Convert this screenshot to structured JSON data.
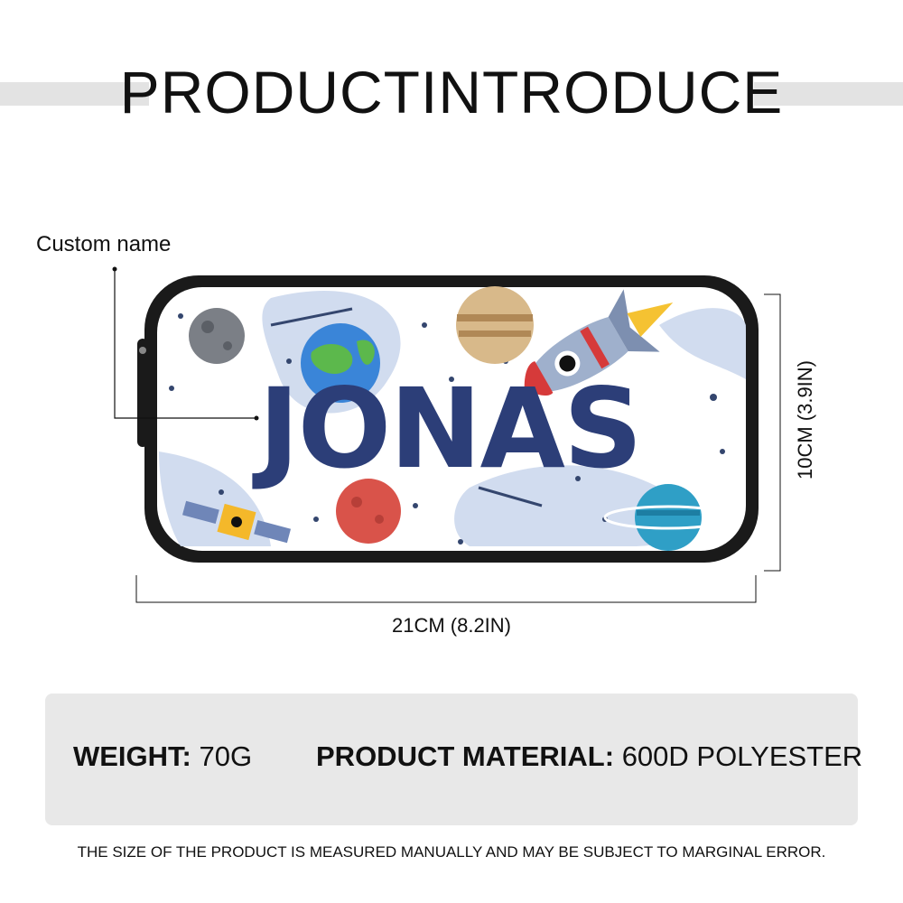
{
  "header": {
    "title": "PRODUCTINTRODUCE"
  },
  "callout": {
    "label": "Custom name"
  },
  "product": {
    "name": "JONAS"
  },
  "dimensions": {
    "width": "21CM (8.2IN)",
    "height": "10CM (3.9IN)"
  },
  "specs": {
    "weight_label": "WEIGHT:",
    "weight_value": "70G",
    "material_label": "PRODUCT MATERIAL:",
    "material_value": "600D POLYESTER"
  },
  "disclaimer": "THE SIZE OF THE PRODUCT IS MEASURED MANUALLY AND MAY BE SUBJECT TO MARGINAL ERROR.",
  "colors": {
    "name_text": "#2c3e78",
    "header_bars": "#e3e3e3",
    "spec_panel": "#e8e8e8"
  }
}
